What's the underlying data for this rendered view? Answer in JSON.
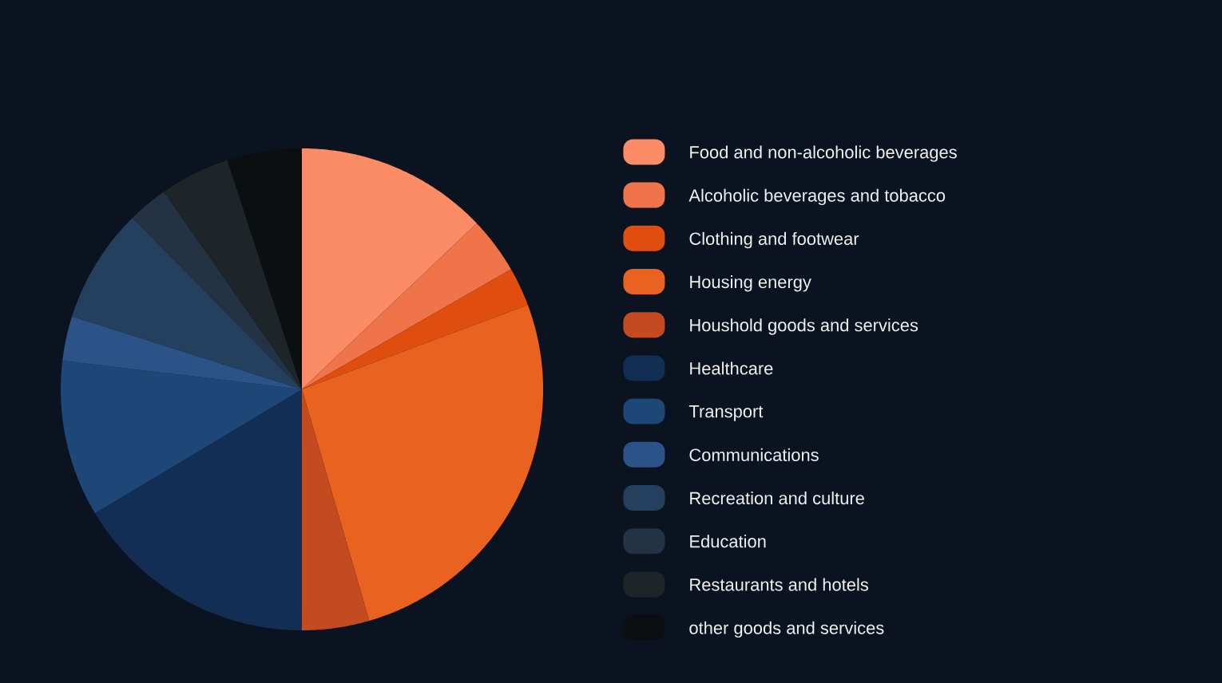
{
  "chart_data": {
    "type": "pie",
    "legend": "right",
    "categories": [
      "Food and non-alcoholic beverages",
      "Alcoholic beverages and tobacco",
      "Clothing and footwear",
      "Housing energy",
      "Houshold goods and services",
      "Healthcare",
      "Transport",
      "Communications",
      "Recreation and culture",
      "Education",
      "Restaurants and hotels",
      "other goods and services"
    ],
    "values": [
      12.9,
      3.8,
      2.6,
      26.2,
      4.5,
      16.4,
      10.5,
      3.0,
      7.7,
      2.7,
      4.7,
      5.0
    ],
    "colors": [
      "#fb8c65",
      "#f07449",
      "#e04e0f",
      "#ea6220",
      "#c44b1f",
      "#122e55",
      "#1d4777",
      "#2c5387",
      "#25405f",
      "#243344",
      "#1e2529",
      "#0b0f12"
    ]
  }
}
